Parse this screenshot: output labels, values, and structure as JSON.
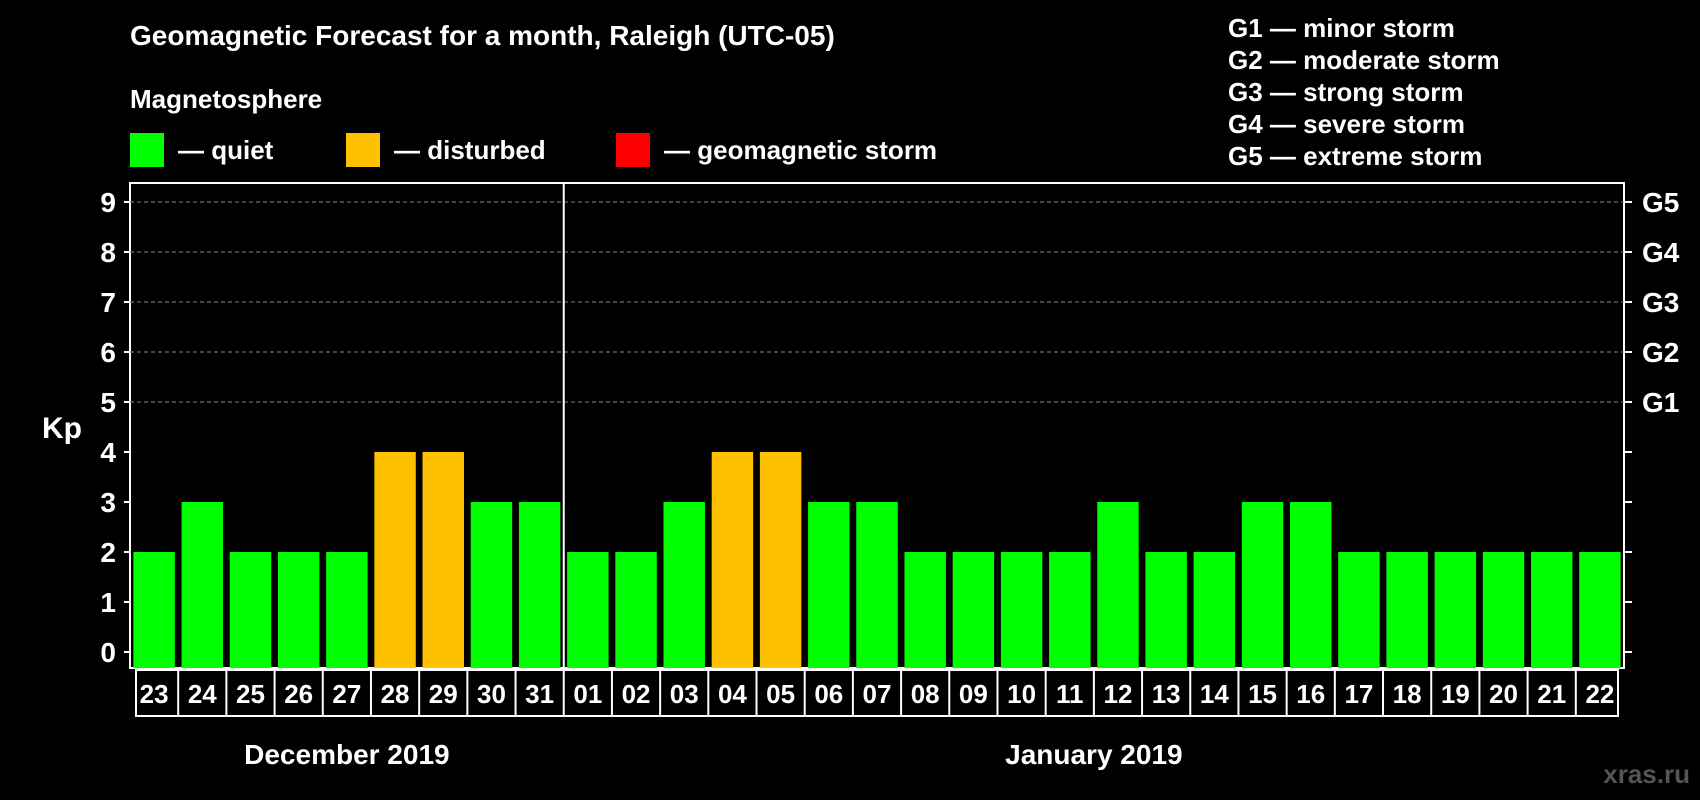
{
  "title": "Geomagnetic Forecast for a month, Raleigh (UTC-05)",
  "legend": {
    "heading": "Magnetosphere",
    "items": [
      {
        "label": "— quiet",
        "color": "#00ff00"
      },
      {
        "label": "— disturbed",
        "color": "#ffc000"
      },
      {
        "label": "— geomagnetic storm",
        "color": "#ff0000"
      }
    ]
  },
  "storm_scale": [
    "G1 — minor storm",
    "G2 — moderate storm",
    "G3 — strong storm",
    "G4 — severe storm",
    "G5 — extreme storm"
  ],
  "watermark": "xras.ru",
  "chart_data": {
    "type": "bar",
    "title": "Geomagnetic Forecast for a month, Raleigh (UTC-05)",
    "ylabel": "Kp",
    "ylim": [
      0,
      9
    ],
    "yticks": [
      0,
      1,
      2,
      3,
      4,
      5,
      6,
      7,
      8,
      9
    ],
    "right_axis_labels": [
      {
        "kp": 5,
        "label": "G1"
      },
      {
        "kp": 6,
        "label": "G2"
      },
      {
        "kp": 7,
        "label": "G3"
      },
      {
        "kp": 8,
        "label": "G4"
      },
      {
        "kp": 9,
        "label": "G5"
      }
    ],
    "grid": "dashed horizontal at Kp 5-9",
    "categories": [
      "23",
      "24",
      "25",
      "26",
      "27",
      "28",
      "29",
      "30",
      "31",
      "01",
      "02",
      "03",
      "04",
      "05",
      "06",
      "07",
      "08",
      "09",
      "10",
      "11",
      "12",
      "13",
      "14",
      "15",
      "16",
      "17",
      "18",
      "19",
      "20",
      "21",
      "22"
    ],
    "values": [
      2,
      3,
      2,
      2,
      2,
      4,
      4,
      3,
      3,
      2,
      2,
      3,
      4,
      4,
      3,
      3,
      2,
      2,
      2,
      2,
      3,
      2,
      2,
      3,
      3,
      2,
      2,
      2,
      2,
      2,
      2
    ],
    "status": [
      "quiet",
      "quiet",
      "quiet",
      "quiet",
      "quiet",
      "disturbed",
      "disturbed",
      "quiet",
      "quiet",
      "quiet",
      "quiet",
      "quiet",
      "disturbed",
      "disturbed",
      "quiet",
      "quiet",
      "quiet",
      "quiet",
      "quiet",
      "quiet",
      "quiet",
      "quiet",
      "quiet",
      "quiet",
      "quiet",
      "quiet",
      "quiet",
      "quiet",
      "quiet",
      "quiet",
      "quiet"
    ],
    "month_groups": [
      {
        "label": "December 2019",
        "start": 0,
        "count": 9
      },
      {
        "label": "January 2019",
        "start": 9,
        "count": 22
      }
    ],
    "colors": {
      "quiet": "#00ff00",
      "disturbed": "#ffc000",
      "storm": "#ff0000"
    }
  }
}
